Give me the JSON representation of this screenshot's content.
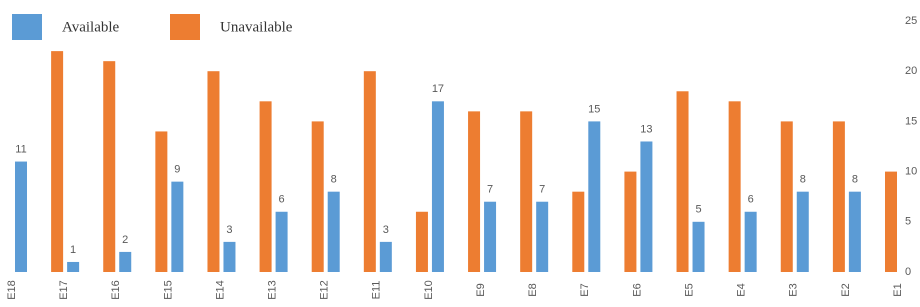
{
  "chart_data": {
    "type": "bar",
    "categories": [
      "E18",
      "E17",
      "E16",
      "E15",
      "E14",
      "E13",
      "E12",
      "E11",
      "E10",
      "E9",
      "E8",
      "E7",
      "E6",
      "E5",
      "E4",
      "E3",
      "E2",
      "E1"
    ],
    "series": [
      {
        "name": "Available",
        "color": "#5b9bd5",
        "values": [
          11,
          1,
          2,
          9,
          3,
          6,
          8,
          3,
          17,
          7,
          7,
          15,
          13,
          5,
          6,
          8,
          8,
          null
        ]
      },
      {
        "name": "Unavailable",
        "color": "#ed7d31",
        "values": [
          null,
          22,
          21,
          14,
          20,
          17,
          15,
          20,
          6,
          16,
          16,
          8,
          10,
          18,
          17,
          15,
          15,
          10
        ]
      }
    ],
    "labeled_series": 0,
    "ylim": [
      0,
      25
    ],
    "yticks": [
      0,
      5,
      10,
      15,
      20,
      25
    ],
    "grid": false
  }
}
